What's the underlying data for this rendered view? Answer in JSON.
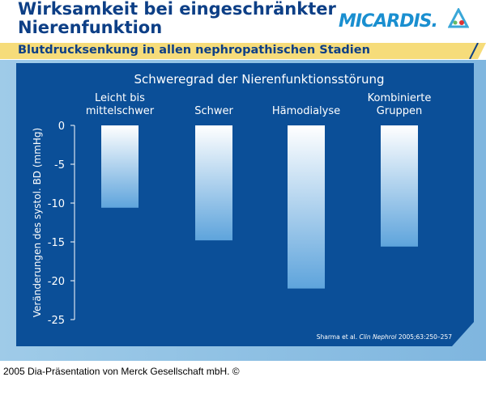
{
  "header": {
    "title_line1": "Wirksamkeit bei eingeschränkter",
    "title_line2": "Nierenfunktion",
    "logo": "MICARDIS.",
    "subtitle": "Blutdrucksenkung in allen nephropathischen Stadien"
  },
  "colors": {
    "title": "#0d3f86",
    "panel": "#0b4f98",
    "band": "#f6dc7a",
    "bar_top": "#ffffff",
    "bar_bottom": "#5ea4dc"
  },
  "chart_data": {
    "type": "bar",
    "title": "Schweregrad der Nierenfunktionsstörung",
    "categories": [
      "Leicht bis\nmittelschwer",
      "Schwer",
      "Hämodialyse",
      "Kombinierte\nGruppen"
    ],
    "values": [
      -10.6,
      -14.8,
      -21.0,
      -15.6
    ],
    "ylabel": "Veränderungen des systol. BD (mmHg)",
    "ylim": [
      -25,
      0
    ],
    "yticks": [
      0,
      -5,
      -10,
      -15,
      -20,
      -25
    ],
    "grid": false
  },
  "citation": {
    "authors": "Sharma et al.",
    "journal": "Clin Nephrol",
    "ref": "2005;63:250–257"
  },
  "footer": "2005 Dia-Präsentation von Merck Gesellschaft mbH. ©"
}
